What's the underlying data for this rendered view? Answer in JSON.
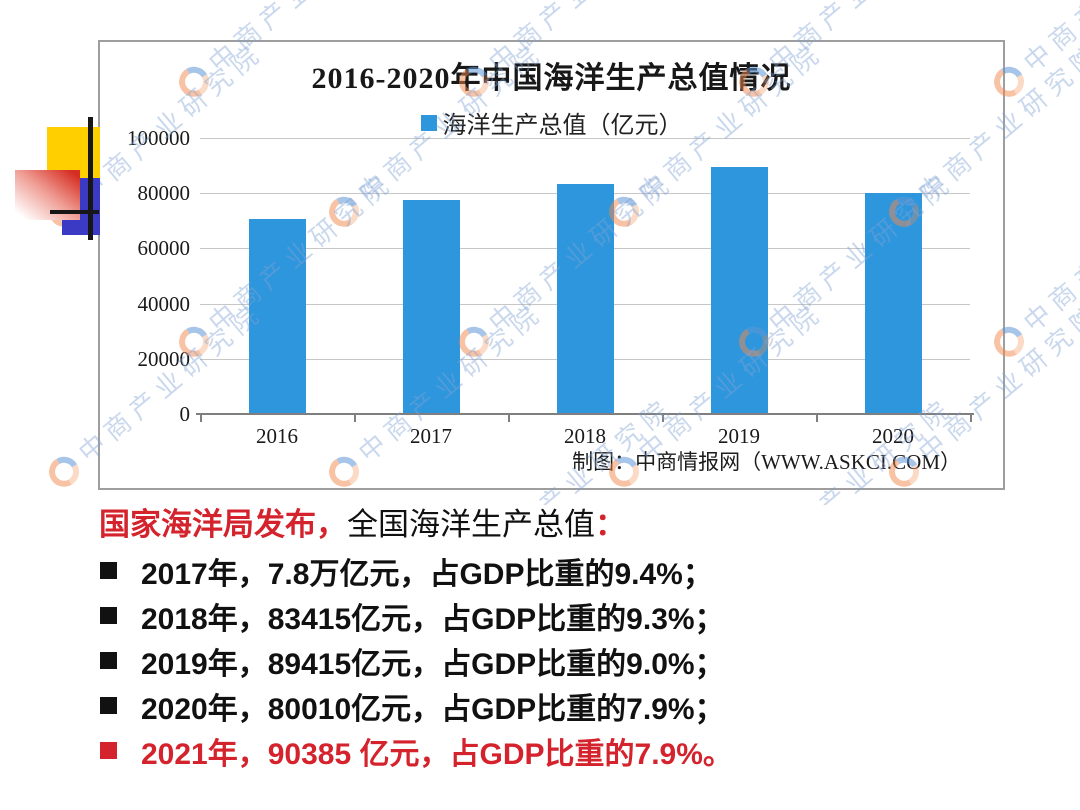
{
  "watermark": {
    "text": "中商产业研究院",
    "logo": "askci-c-logo",
    "color": "#81a3d4"
  },
  "chart_data": {
    "type": "bar",
    "title": "2016-2020年中国海洋生产总值情况",
    "legend_label": "海洋生产总值（亿元）",
    "legend_position": "top",
    "categories": [
      "2016",
      "2017",
      "2018",
      "2019",
      "2020"
    ],
    "values": [
      70507,
      77611,
      83415,
      89415,
      80010
    ],
    "xlabel": "",
    "ylabel": "",
    "ylim": [
      0,
      100000
    ],
    "yticks": [
      0,
      20000,
      40000,
      60000,
      80000,
      100000
    ],
    "grid": true,
    "bar_color": "#2E96DC",
    "source": "制图：中商情报网（WWW.ASKCI.COM）"
  },
  "body": {
    "heading": {
      "red": "国家海洋局发布，",
      "black": "全国海洋生产总值",
      "colon": "："
    },
    "items": [
      {
        "text": "2017年，7.8万亿元，占GDP比重的9.4%；",
        "color": "black"
      },
      {
        "text": "2018年，83415亿元，占GDP比重的9.3%；",
        "color": "black"
      },
      {
        "text": "2019年，89415亿元，占GDP比重的9.0%；",
        "color": "black"
      },
      {
        "text": "2020年，80010亿元，占GDP比重的7.9%；",
        "color": "black"
      },
      {
        "text": "2021年，90385 亿元，占GDP比重的7.9%。",
        "color": "red"
      }
    ]
  },
  "colors": {
    "accent_red": "#d4232c",
    "bar_blue": "#2E96DC",
    "decor_yellow": "#FFCF00",
    "decor_blue": "#3A3AC4",
    "decor_red": "#d62e23",
    "grid_gray": "#c7c7c7",
    "axis_gray": "#7f7f7f",
    "border_gray": "#9e9e9e"
  }
}
